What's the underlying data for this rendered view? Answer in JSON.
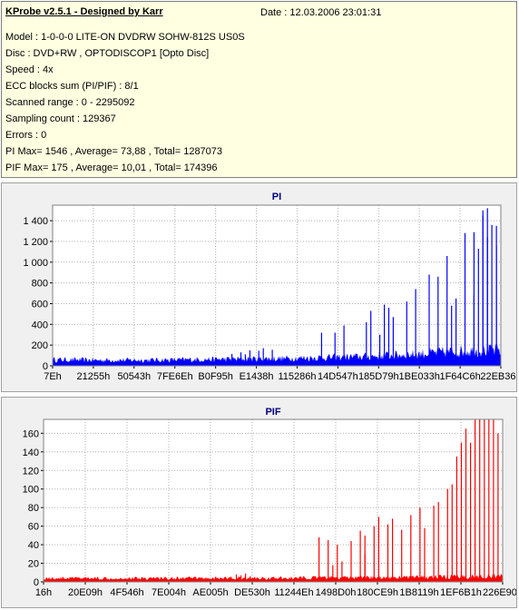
{
  "header": {
    "app_title": "KProbe v2.5.1 - Designed by Karr",
    "date": "Date : 12.03.2006 23:01:31",
    "lines": [
      "Model : 1-0-0-0 LITE-ON DVDRW SOHW-812S  US0S",
      "Disc : DVD+RW , OPTODISCOP1 [Opto Disc]",
      "Speed : 4x",
      "ECC blocks sum (PI/PIF) : 8/1",
      "Scanned range : 0 - 2295092",
      "Sampling count : 129367",
      "Errors : 0",
      "PI Max= 1546 , Average= 73,88 , Total= 1287073",
      "PIF Max= 175 , Average= 10,01 , Total= 174396"
    ]
  },
  "chart_data": [
    {
      "type": "bar",
      "title": "PI",
      "color": "#0000ff",
      "x_ticks": [
        "7Eh",
        "21255h",
        "50543h",
        "7FE6Eh",
        "B0F95h",
        "E1438h",
        "115286h",
        "14D547h",
        "185D79h",
        "1BE033h",
        "1F64C6h",
        "22EB36h"
      ],
      "y_ticks": [
        0,
        200,
        400,
        600,
        800,
        1000,
        1200,
        1400
      ],
      "ylim": [
        0,
        1550
      ],
      "baseline": [
        [
          0,
          60
        ],
        [
          0.1,
          55
        ],
        [
          0.2,
          55
        ],
        [
          0.3,
          60
        ],
        [
          0.4,
          65
        ],
        [
          0.5,
          70
        ],
        [
          0.6,
          80
        ],
        [
          0.7,
          90
        ],
        [
          0.8,
          110
        ],
        [
          0.9,
          140
        ],
        [
          1.0,
          150
        ]
      ],
      "spikes": [
        [
          0.4,
          115
        ],
        [
          0.42,
          130
        ],
        [
          0.43,
          110
        ],
        [
          0.44,
          150
        ],
        [
          0.46,
          145
        ],
        [
          0.47,
          170
        ],
        [
          0.49,
          155
        ],
        [
          0.6,
          320
        ],
        [
          0.63,
          320
        ],
        [
          0.65,
          390
        ],
        [
          0.7,
          420
        ],
        [
          0.71,
          530
        ],
        [
          0.73,
          300
        ],
        [
          0.74,
          590
        ],
        [
          0.75,
          560
        ],
        [
          0.76,
          470
        ],
        [
          0.79,
          620
        ],
        [
          0.81,
          740
        ],
        [
          0.84,
          880
        ],
        [
          0.86,
          860
        ],
        [
          0.88,
          1060
        ],
        [
          0.89,
          580
        ],
        [
          0.9,
          650
        ],
        [
          0.92,
          1280
        ],
        [
          0.94,
          1290
        ],
        [
          0.94,
          680
        ],
        [
          0.95,
          1130
        ],
        [
          0.96,
          1450
        ],
        [
          0.96,
          1500
        ],
        [
          0.97,
          1520
        ],
        [
          0.97,
          1240
        ],
        [
          0.98,
          1360
        ],
        [
          0.99,
          1160
        ],
        [
          0.99,
          1350
        ]
      ]
    },
    {
      "type": "bar",
      "title": "PIF",
      "color": "#ff0000",
      "x_ticks": [
        "16h",
        "20E09h",
        "4F546h",
        "7E004h",
        "AE005h",
        "DE530h",
        "11244Eh",
        "1498D0h",
        "180CE9h",
        "1B8119h",
        "1EF6B1h",
        "226E90h"
      ],
      "y_ticks": [
        0,
        20,
        40,
        60,
        80,
        100,
        120,
        140,
        160
      ],
      "ylim": [
        0,
        175
      ],
      "baseline": [
        [
          0,
          4
        ],
        [
          0.5,
          4
        ],
        [
          0.8,
          5
        ],
        [
          1.0,
          6
        ]
      ],
      "spikes": [
        [
          0.42,
          8
        ],
        [
          0.43,
          7
        ],
        [
          0.44,
          9
        ],
        [
          0.45,
          6
        ],
        [
          0.6,
          48
        ],
        [
          0.62,
          45
        ],
        [
          0.63,
          18
        ],
        [
          0.64,
          40
        ],
        [
          0.65,
          22
        ],
        [
          0.67,
          44
        ],
        [
          0.69,
          55
        ],
        [
          0.7,
          50
        ],
        [
          0.7,
          30
        ],
        [
          0.72,
          60
        ],
        [
          0.73,
          70
        ],
        [
          0.75,
          62
        ],
        [
          0.76,
          68
        ],
        [
          0.78,
          56
        ],
        [
          0.8,
          72
        ],
        [
          0.82,
          80
        ],
        [
          0.83,
          58
        ],
        [
          0.85,
          82
        ],
        [
          0.86,
          86
        ],
        [
          0.88,
          100
        ],
        [
          0.89,
          105
        ],
        [
          0.9,
          135
        ],
        [
          0.91,
          150
        ],
        [
          0.92,
          165
        ],
        [
          0.93,
          150
        ],
        [
          0.94,
          175
        ],
        [
          0.95,
          175
        ],
        [
          0.96,
          175
        ],
        [
          0.97,
          175
        ],
        [
          0.98,
          175
        ],
        [
          0.99,
          160
        ]
      ]
    }
  ]
}
